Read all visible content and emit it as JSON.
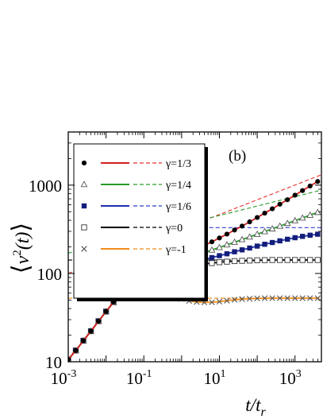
{
  "chart_data": {
    "type": "line",
    "panel_label": "(b)",
    "xlabel": {
      "base": "t/t",
      "sub": "r"
    },
    "ylabel": {
      "left": "⟨",
      "v": "v",
      "sup": "2",
      "arg": "(t)",
      "right": "⟩"
    },
    "xscale": "log",
    "yscale": "log",
    "xlim": [
      0.001,
      5000
    ],
    "ylim": [
      10,
      4000
    ],
    "xticks": [
      {
        "value": 0.001,
        "base": "10",
        "exp": "-3"
      },
      {
        "value": 0.1,
        "base": "10",
        "exp": "-1"
      },
      {
        "value": 10,
        "base": "10",
        "exp": "1"
      },
      {
        "value": 1000,
        "base": "10",
        "exp": "3"
      }
    ],
    "yticks": [
      {
        "value": 10,
        "label": "10"
      },
      {
        "value": 100,
        "label": "100"
      },
      {
        "value": 1000,
        "label": "1000"
      }
    ],
    "grid": false,
    "legend_position": "top-left",
    "series": [
      {
        "name": "γ=1/3",
        "color": "#d62020",
        "marker": "filled-circle",
        "x": [
          0.001,
          0.00158,
          0.00251,
          0.00398,
          0.00631,
          0.01,
          0.0158,
          0.0251,
          0.0398,
          0.0631,
          0.1,
          0.158,
          0.251,
          0.398,
          0.631,
          1,
          1.58,
          2.51,
          3.98,
          6.31,
          10,
          15.8,
          25.1,
          39.8,
          63.1,
          100,
          158,
          251,
          398,
          631,
          1000,
          1580,
          2510,
          3980
        ],
        "y": [
          10.6,
          13.4,
          17.3,
          22.2,
          28.8,
          37.0,
          47.7,
          60.3,
          73.6,
          85.4,
          96.9,
          108,
          119,
          131,
          144,
          158,
          173,
          189,
          208,
          228,
          252,
          279,
          310,
          344,
          384,
          430,
          482,
          540,
          608,
          684,
          771,
          868,
          978,
          1100
        ]
      },
      {
        "name": "γ=1/4",
        "color": "#2a9a2a",
        "marker": "open-triangle",
        "x": [
          0.001,
          0.00158,
          0.00251,
          0.00398,
          0.00631,
          0.01,
          0.0158,
          0.0251,
          0.0398,
          0.0631,
          0.1,
          0.158,
          0.251,
          0.398,
          0.631,
          1,
          1.58,
          2.51,
          3.98,
          6.31,
          10,
          15.8,
          25.1,
          39.8,
          63.1,
          100,
          158,
          251,
          398,
          631,
          1000,
          1580,
          2510,
          3980
        ],
        "y": [
          10.6,
          13.4,
          17.3,
          22.2,
          28.8,
          37.0,
          47.6,
          60.0,
          73.0,
          84.2,
          94.7,
          104,
          113,
          122,
          131,
          141,
          151,
          161,
          172,
          184,
          197,
          211,
          226,
          242,
          259,
          278,
          298,
          320,
          344,
          369,
          396,
          425,
          457,
          492
        ]
      },
      {
        "name": "γ=1/6",
        "color": "#1c2fb0",
        "marker": "filled-square",
        "x": [
          0.001,
          0.00158,
          0.00251,
          0.00398,
          0.00631,
          0.01,
          0.0158,
          0.0251,
          0.0398,
          0.0631,
          0.1,
          0.158,
          0.251,
          0.398,
          0.631,
          1,
          1.58,
          2.51,
          3.98,
          6.31,
          10,
          15.8,
          25.1,
          39.8,
          63.1,
          100,
          158,
          251,
          398,
          631,
          1000,
          1580,
          2510,
          3980
        ],
        "y": [
          10.6,
          13.4,
          17.3,
          22.2,
          28.8,
          37.0,
          47.5,
          59.8,
          72.6,
          83.4,
          92.5,
          100,
          106,
          112,
          118,
          124,
          130,
          137,
          144,
          151,
          159,
          167,
          176,
          185,
          194,
          204,
          214,
          224,
          234,
          244,
          254,
          263,
          271,
          278
        ]
      },
      {
        "name": "γ=0",
        "color": "#000000",
        "marker": "open-square",
        "x": [
          0.001,
          0.00158,
          0.00251,
          0.00398,
          0.00631,
          0.01,
          0.0158,
          0.0251,
          0.0398,
          0.0631,
          0.1,
          0.158,
          0.251,
          0.398,
          0.631,
          1,
          1.58,
          2.51,
          3.98,
          6.31,
          10,
          15.8,
          25.1,
          39.8,
          63.1,
          100,
          158,
          251,
          398,
          631,
          1000,
          1580,
          2510,
          3980
        ],
        "y": [
          10.6,
          13.4,
          17.3,
          22.2,
          28.8,
          37.0,
          47.4,
          59.6,
          72.0,
          82.0,
          89.5,
          95.5,
          101,
          106,
          111,
          116,
          120,
          124,
          128,
          131,
          134,
          136,
          138,
          139,
          140,
          141,
          141.5,
          142,
          142,
          142,
          142,
          142,
          142,
          142
        ]
      },
      {
        "name": "γ=-1",
        "color": "#f08a18",
        "marker": "cross",
        "x": [
          0.001,
          0.00158,
          0.00251,
          0.00398,
          0.00631,
          0.01,
          0.0158,
          0.0251,
          0.0398,
          0.0631,
          0.1,
          0.158,
          0.251,
          0.398,
          0.631,
          1,
          1.58,
          2.51,
          3.98,
          6.31,
          10,
          15.8,
          25.1,
          39.8,
          63.1,
          100,
          158,
          251,
          398,
          631,
          1000,
          1580,
          2510,
          3980
        ],
        "y": [
          10.6,
          13.4,
          17.3,
          22.2,
          28.8,
          36.9,
          46.8,
          56.4,
          61.2,
          63.5,
          65.5,
          66.3,
          64.5,
          60.5,
          55.5,
          51.5,
          48.8,
          47.5,
          47.0,
          47.2,
          48.0,
          49.2,
          50.3,
          51.2,
          51.8,
          52.2,
          52.4,
          52.5,
          52.5,
          52.5,
          52.5,
          52.5,
          52.5,
          52.5
        ]
      }
    ],
    "asymptotes": [
      {
        "series": "γ=1/3",
        "color": "#e83030",
        "style": "dashed",
        "x": [
          0.001,
          5000
        ],
        "y": [
          100,
          1310
        ]
      },
      {
        "series": "γ=1/4",
        "color": "#2a9a2a",
        "style": "dashed",
        "x": [
          0.001,
          5000
        ],
        "y": [
          170,
          880
        ]
      },
      {
        "series": "γ=1/6",
        "color": "#2b3fd0",
        "style": "dashed",
        "x": [
          5.4,
          5000
        ],
        "y": [
          330,
          330
        ]
      },
      {
        "series": "γ=0",
        "color": "#000000",
        "style": "dashed",
        "x": [
          0.001,
          5000
        ],
        "y": [
          142,
          142
        ]
      },
      {
        "series": "γ=-1",
        "color": "#f08a18",
        "style": "dashed",
        "x": [
          0.001,
          5000
        ],
        "y": [
          52.5,
          52.5
        ]
      }
    ]
  }
}
